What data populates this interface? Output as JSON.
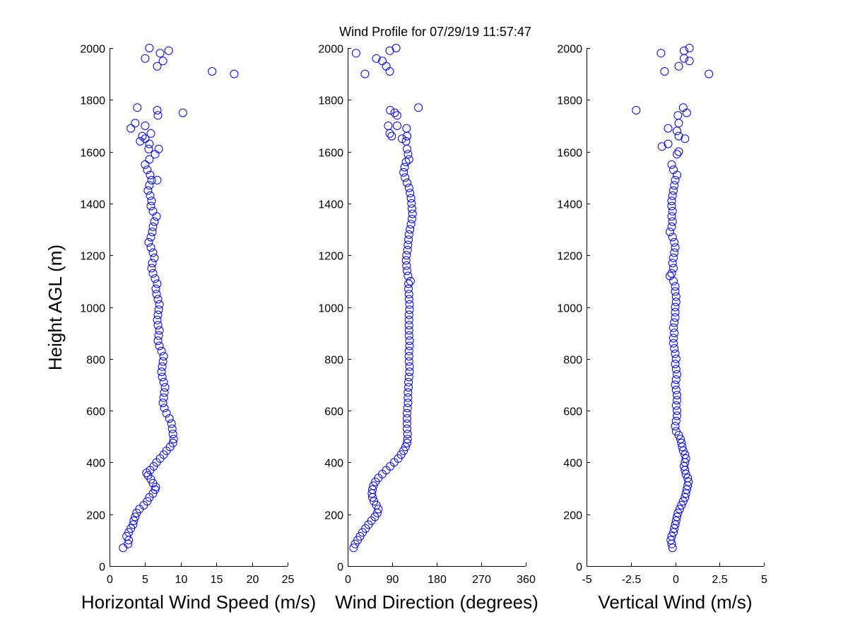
{
  "title": "Wind Profile for  07/29/19 11:57:47",
  "ylabel": "Height AGL (m)",
  "colors": {
    "marker": "#0000ff",
    "axis": "#000000",
    "background": "#ffffff"
  },
  "chart_data": [
    {
      "type": "scatter",
      "xlabel": "Horizontal Wind Speed (m/s)",
      "ylabel": "Height AGL (m)",
      "xlim": [
        0,
        25
      ],
      "ylim": [
        0,
        2000
      ],
      "xticks": [
        0,
        5,
        10,
        15,
        20,
        25
      ],
      "xtick_labels": [
        "0",
        "5",
        "10",
        "15",
        "20",
        "25"
      ],
      "yticks": [
        0,
        200,
        400,
        600,
        800,
        1000,
        1200,
        1400,
        1600,
        1800,
        2000
      ],
      "ytick_labels": [
        "0",
        "200",
        "400",
        "600",
        "800",
        "1000",
        "1200",
        "1400",
        "1600",
        "1800",
        "2000"
      ],
      "grid": false,
      "marker": "open-circle",
      "points": [
        [
          1.9,
          70
        ],
        [
          2.6,
          85
        ],
        [
          2.7,
          100
        ],
        [
          2.4,
          115
        ],
        [
          2.7,
          130
        ],
        [
          3.0,
          145
        ],
        [
          3.3,
          160
        ],
        [
          3.4,
          175
        ],
        [
          3.6,
          190
        ],
        [
          3.8,
          205
        ],
        [
          4.2,
          220
        ],
        [
          4.8,
          235
        ],
        [
          5.3,
          250
        ],
        [
          5.6,
          265
        ],
        [
          6.1,
          280
        ],
        [
          6.4,
          295
        ],
        [
          6.5,
          305
        ],
        [
          6.1,
          320
        ],
        [
          5.8,
          335
        ],
        [
          5.4,
          350
        ],
        [
          5.2,
          360
        ],
        [
          5.7,
          370
        ],
        [
          6.2,
          385
        ],
        [
          6.6,
          400
        ],
        [
          7.1,
          415
        ],
        [
          7.6,
          430
        ],
        [
          8.0,
          445
        ],
        [
          8.5,
          460
        ],
        [
          8.9,
          475
        ],
        [
          9.0,
          490
        ],
        [
          8.9,
          510
        ],
        [
          8.8,
          530
        ],
        [
          8.7,
          550
        ],
        [
          8.4,
          570
        ],
        [
          8.0,
          590
        ],
        [
          7.7,
          610
        ],
        [
          7.5,
          630
        ],
        [
          7.6,
          650
        ],
        [
          7.7,
          670
        ],
        [
          7.8,
          690
        ],
        [
          7.6,
          710
        ],
        [
          7.4,
          730
        ],
        [
          7.3,
          750
        ],
        [
          7.4,
          770
        ],
        [
          7.5,
          790
        ],
        [
          7.6,
          810
        ],
        [
          7.3,
          830
        ],
        [
          7.0,
          850
        ],
        [
          6.8,
          870
        ],
        [
          6.9,
          890
        ],
        [
          7.0,
          910
        ],
        [
          6.8,
          930
        ],
        [
          6.7,
          950
        ],
        [
          6.8,
          970
        ],
        [
          6.9,
          990
        ],
        [
          7.0,
          1010
        ],
        [
          6.8,
          1030
        ],
        [
          6.6,
          1050
        ],
        [
          6.5,
          1070
        ],
        [
          6.7,
          1090
        ],
        [
          6.4,
          1110
        ],
        [
          6.1,
          1130
        ],
        [
          5.9,
          1150
        ],
        [
          6.0,
          1170
        ],
        [
          6.3,
          1190
        ],
        [
          6.1,
          1210
        ],
        [
          5.8,
          1230
        ],
        [
          5.5,
          1250
        ],
        [
          5.8,
          1270
        ],
        [
          6.0,
          1290
        ],
        [
          6.1,
          1310
        ],
        [
          6.3,
          1330
        ],
        [
          6.6,
          1350
        ],
        [
          6.1,
          1370
        ],
        [
          5.8,
          1390
        ],
        [
          5.9,
          1410
        ],
        [
          5.7,
          1430
        ],
        [
          5.4,
          1450
        ],
        [
          5.6,
          1470
        ],
        [
          5.9,
          1490
        ],
        [
          6.7,
          1490
        ],
        [
          5.7,
          1510
        ],
        [
          5.3,
          1530
        ],
        [
          5.0,
          1550
        ],
        [
          5.6,
          1570
        ],
        [
          6.4,
          1590
        ],
        [
          5.5,
          1610
        ],
        [
          6.9,
          1610
        ],
        [
          5.6,
          1630
        ],
        [
          5.0,
          1650
        ],
        [
          5.8,
          1670
        ],
        [
          4.3,
          1640
        ],
        [
          4.6,
          1660
        ],
        [
          3.0,
          1690
        ],
        [
          5.0,
          1700
        ],
        [
          3.6,
          1710
        ],
        [
          6.8,
          1740
        ],
        [
          6.7,
          1760
        ],
        [
          10.3,
          1750
        ],
        [
          3.9,
          1770
        ],
        [
          17.5,
          1900
        ],
        [
          14.4,
          1910
        ],
        [
          7.5,
          1950
        ],
        [
          6.7,
          1930
        ],
        [
          5.0,
          1960
        ],
        [
          7.1,
          1980
        ],
        [
          8.3,
          1990
        ],
        [
          5.6,
          2000
        ]
      ]
    },
    {
      "type": "scatter",
      "xlabel": "Wind Direction (degrees)",
      "ylabel": "",
      "xlim": [
        0,
        360
      ],
      "ylim": [
        0,
        2000
      ],
      "xticks": [
        0,
        90,
        180,
        270,
        360
      ],
      "xtick_labels": [
        "0",
        "90",
        "180",
        "270",
        "360"
      ],
      "yticks": [
        0,
        200,
        400,
        600,
        800,
        1000,
        1200,
        1400,
        1600,
        1800,
        2000
      ],
      "ytick_labels": [
        "0",
        "200",
        "400",
        "600",
        "800",
        "1000",
        "1200",
        "1400",
        "1600",
        "1800",
        "2000"
      ],
      "grid": false,
      "marker": "open-circle",
      "points": [
        [
          12,
          70
        ],
        [
          15,
          85
        ],
        [
          20,
          100
        ],
        [
          25,
          115
        ],
        [
          30,
          130
        ],
        [
          36,
          145
        ],
        [
          42,
          160
        ],
        [
          48,
          175
        ],
        [
          55,
          190
        ],
        [
          60,
          205
        ],
        [
          62,
          220
        ],
        [
          58,
          235
        ],
        [
          53,
          250
        ],
        [
          50,
          265
        ],
        [
          49,
          280
        ],
        [
          50,
          295
        ],
        [
          52,
          310
        ],
        [
          56,
          325
        ],
        [
          62,
          340
        ],
        [
          70,
          355
        ],
        [
          78,
          370
        ],
        [
          86,
          385
        ],
        [
          94,
          400
        ],
        [
          102,
          415
        ],
        [
          108,
          430
        ],
        [
          113,
          445
        ],
        [
          117,
          460
        ],
        [
          120,
          475
        ],
        [
          121,
          490
        ],
        [
          121,
          510
        ],
        [
          120,
          530
        ],
        [
          120,
          550
        ],
        [
          120,
          570
        ],
        [
          120,
          590
        ],
        [
          121,
          610
        ],
        [
          122,
          630
        ],
        [
          122,
          650
        ],
        [
          122,
          670
        ],
        [
          123,
          690
        ],
        [
          123,
          710
        ],
        [
          124,
          730
        ],
        [
          125,
          750
        ],
        [
          125,
          770
        ],
        [
          124,
          790
        ],
        [
          124,
          810
        ],
        [
          124,
          830
        ],
        [
          125,
          850
        ],
        [
          125,
          870
        ],
        [
          124,
          890
        ],
        [
          124,
          910
        ],
        [
          124,
          930
        ],
        [
          124,
          950
        ],
        [
          124,
          970
        ],
        [
          125,
          990
        ],
        [
          125,
          1010
        ],
        [
          124,
          1030
        ],
        [
          124,
          1050
        ],
        [
          123,
          1070
        ],
        [
          123,
          1090
        ],
        [
          127,
          1100
        ],
        [
          122,
          1120
        ],
        [
          120,
          1140
        ],
        [
          119,
          1160
        ],
        [
          118,
          1180
        ],
        [
          119,
          1200
        ],
        [
          121,
          1220
        ],
        [
          122,
          1240
        ],
        [
          123,
          1260
        ],
        [
          124,
          1280
        ],
        [
          126,
          1300
        ],
        [
          128,
          1320
        ],
        [
          130,
          1340
        ],
        [
          131,
          1360
        ],
        [
          130,
          1380
        ],
        [
          129,
          1400
        ],
        [
          128,
          1420
        ],
        [
          126,
          1440
        ],
        [
          124,
          1460
        ],
        [
          120,
          1480
        ],
        [
          116,
          1500
        ],
        [
          113,
          1520
        ],
        [
          115,
          1540
        ],
        [
          118,
          1560
        ],
        [
          124,
          1570
        ],
        [
          122,
          1590
        ],
        [
          120,
          1610
        ],
        [
          118,
          1640
        ],
        [
          110,
          1650
        ],
        [
          120,
          1660
        ],
        [
          85,
          1670
        ],
        [
          82,
          1700
        ],
        [
          100,
          1700
        ],
        [
          119,
          1690
        ],
        [
          89,
          1660
        ],
        [
          86,
          1760
        ],
        [
          95,
          1750
        ],
        [
          100,
          1740
        ],
        [
          143,
          1770
        ],
        [
          35,
          1900
        ],
        [
          85,
          1910
        ],
        [
          78,
          1930
        ],
        [
          70,
          1950
        ],
        [
          58,
          1960
        ],
        [
          85,
          1990
        ],
        [
          98,
          2000
        ],
        [
          17,
          1980
        ]
      ]
    },
    {
      "type": "scatter",
      "xlabel": "Vertical Wind (m/s)",
      "ylabel": "",
      "xlim": [
        -5,
        5
      ],
      "ylim": [
        0,
        2000
      ],
      "xticks": [
        -5,
        -2.5,
        0,
        2.5,
        5
      ],
      "xtick_labels": [
        "-5",
        "-2.5",
        "0",
        "2.5",
        "5"
      ],
      "yticks": [
        0,
        200,
        400,
        600,
        800,
        1000,
        1200,
        1400,
        1600,
        1800,
        2000
      ],
      "ytick_labels": [
        "0",
        "200",
        "400",
        "600",
        "800",
        "1000",
        "1200",
        "1400",
        "1600",
        "1800",
        "2000"
      ],
      "grid": false,
      "marker": "open-circle",
      "points": [
        [
          -0.15,
          70
        ],
        [
          -0.2,
          85
        ],
        [
          -0.25,
          100
        ],
        [
          -0.2,
          115
        ],
        [
          -0.1,
          130
        ],
        [
          -0.05,
          145
        ],
        [
          0.0,
          160
        ],
        [
          0.05,
          175
        ],
        [
          0.1,
          190
        ],
        [
          0.15,
          205
        ],
        [
          0.25,
          220
        ],
        [
          0.35,
          235
        ],
        [
          0.45,
          250
        ],
        [
          0.55,
          265
        ],
        [
          0.6,
          280
        ],
        [
          0.65,
          295
        ],
        [
          0.7,
          310
        ],
        [
          0.75,
          325
        ],
        [
          0.7,
          340
        ],
        [
          0.6,
          355
        ],
        [
          0.55,
          370
        ],
        [
          0.5,
          385
        ],
        [
          0.55,
          400
        ],
        [
          0.6,
          415
        ],
        [
          0.55,
          430
        ],
        [
          0.45,
          445
        ],
        [
          0.4,
          460
        ],
        [
          0.35,
          475
        ],
        [
          0.3,
          490
        ],
        [
          0.2,
          505
        ],
        [
          0.05,
          520
        ],
        [
          0.0,
          540
        ],
        [
          0.05,
          560
        ],
        [
          0.1,
          580
        ],
        [
          0.1,
          600
        ],
        [
          0.05,
          620
        ],
        [
          0.1,
          640
        ],
        [
          0.1,
          660
        ],
        [
          0.05,
          680
        ],
        [
          0.0,
          700
        ],
        [
          0.05,
          720
        ],
        [
          0.1,
          740
        ],
        [
          0.05,
          760
        ],
        [
          0.0,
          780
        ],
        [
          0.05,
          800
        ],
        [
          0.0,
          820
        ],
        [
          -0.05,
          840
        ],
        [
          -0.1,
          860
        ],
        [
          -0.1,
          880
        ],
        [
          -0.05,
          900
        ],
        [
          -0.1,
          920
        ],
        [
          -0.05,
          940
        ],
        [
          0.0,
          960
        ],
        [
          0.0,
          980
        ],
        [
          0.0,
          1000
        ],
        [
          0.05,
          1020
        ],
        [
          0.05,
          1040
        ],
        [
          0.0,
          1060
        ],
        [
          0.0,
          1080
        ],
        [
          -0.1,
          1100
        ],
        [
          -0.3,
          1120
        ],
        [
          -0.2,
          1130
        ],
        [
          -0.1,
          1150
        ],
        [
          -0.15,
          1170
        ],
        [
          -0.1,
          1190
        ],
        [
          -0.05,
          1210
        ],
        [
          0.0,
          1230
        ],
        [
          -0.05,
          1250
        ],
        [
          -0.15,
          1270
        ],
        [
          -0.3,
          1290
        ],
        [
          -0.2,
          1310
        ],
        [
          -0.15,
          1330
        ],
        [
          -0.2,
          1350
        ],
        [
          -0.15,
          1370
        ],
        [
          -0.2,
          1390
        ],
        [
          -0.2,
          1410
        ],
        [
          -0.15,
          1430
        ],
        [
          -0.1,
          1450
        ],
        [
          -0.05,
          1470
        ],
        [
          0.0,
          1490
        ],
        [
          0.1,
          1510
        ],
        [
          -0.1,
          1530
        ],
        [
          -0.2,
          1550
        ],
        [
          0.1,
          1590
        ],
        [
          0.2,
          1600
        ],
        [
          -0.4,
          1630
        ],
        [
          -0.75,
          1620
        ],
        [
          0.2,
          1660
        ],
        [
          0.55,
          1650
        ],
        [
          0.1,
          1680
        ],
        [
          -0.4,
          1690
        ],
        [
          0.2,
          1710
        ],
        [
          0.15,
          1740
        ],
        [
          0.65,
          1750
        ],
        [
          0.45,
          1770
        ],
        [
          -2.2,
          1760
        ],
        [
          1.9,
          1900
        ],
        [
          -0.6,
          1910
        ],
        [
          0.2,
          1930
        ],
        [
          0.8,
          1950
        ],
        [
          0.5,
          1960
        ],
        [
          -0.8,
          1980
        ],
        [
          0.5,
          1990
        ],
        [
          0.8,
          2000
        ]
      ]
    }
  ]
}
